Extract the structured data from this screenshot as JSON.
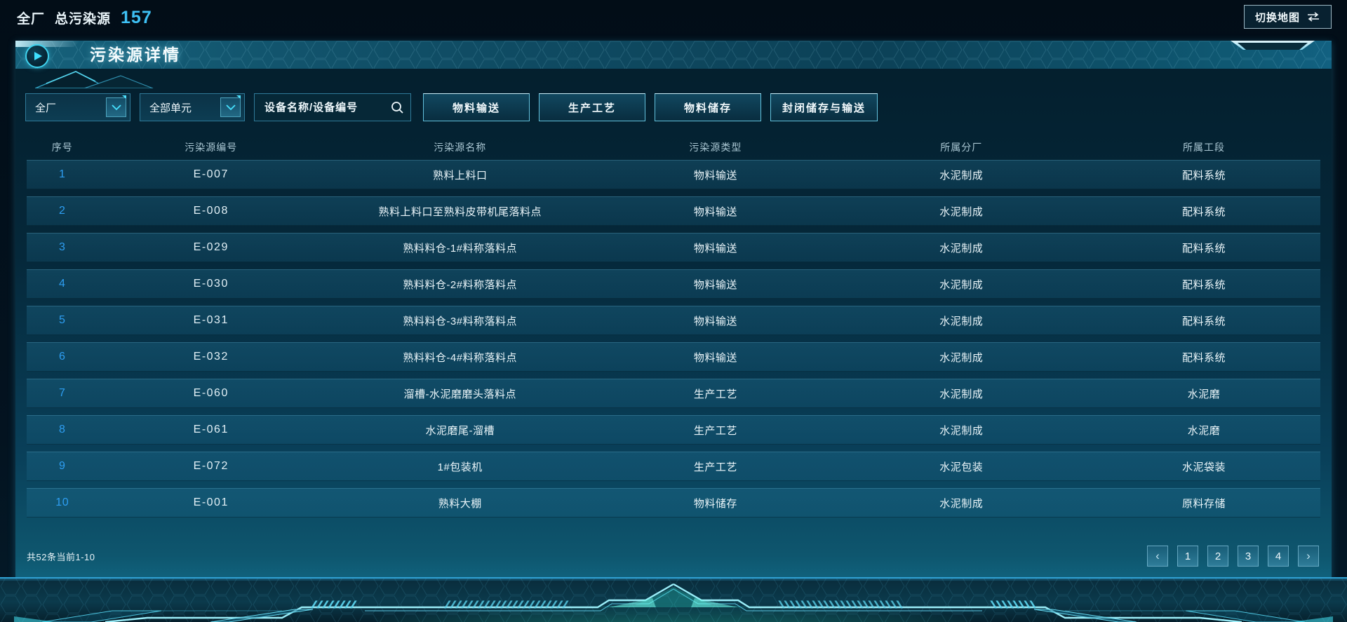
{
  "top_bar": {
    "scope_label": "全厂",
    "total_label": "总污染源",
    "total_value": "157",
    "switch_map_label": "切换地图"
  },
  "panel": {
    "title": "污染源详情",
    "filters": {
      "factory_select": "全厂",
      "unit_select": "全部单元",
      "search_placeholder": "设备名称/设备编号",
      "type_buttons": [
        "物料输送",
        "生产工艺",
        "物料储存",
        "封闭储存与输送"
      ]
    },
    "table": {
      "headers": [
        "序号",
        "污染源编号",
        "污染源名称",
        "污染源类型",
        "所属分厂",
        "所属工段"
      ],
      "rows": [
        [
          "1",
          "E-007",
          "熟料上料口",
          "物料输送",
          "水泥制成",
          "配料系统"
        ],
        [
          "2",
          "E-008",
          "熟料上料口至熟料皮带机尾落料点",
          "物料输送",
          "水泥制成",
          "配料系统"
        ],
        [
          "3",
          "E-029",
          "熟料料仓-1#料称落料点",
          "物料输送",
          "水泥制成",
          "配料系统"
        ],
        [
          "4",
          "E-030",
          "熟料料仓-2#料称落料点",
          "物料输送",
          "水泥制成",
          "配料系统"
        ],
        [
          "5",
          "E-031",
          "熟料料仓-3#料称落料点",
          "物料输送",
          "水泥制成",
          "配料系统"
        ],
        [
          "6",
          "E-032",
          "熟料料仓-4#料称落料点",
          "物料输送",
          "水泥制成",
          "配料系统"
        ],
        [
          "7",
          "E-060",
          "溜槽-水泥磨磨头落料点",
          "生产工艺",
          "水泥制成",
          "水泥磨"
        ],
        [
          "8",
          "E-061",
          "水泥磨尾-溜槽",
          "生产工艺",
          "水泥制成",
          "水泥磨"
        ],
        [
          "9",
          "E-072",
          "1#包装机",
          "生产工艺",
          "水泥包装",
          "水泥袋装"
        ],
        [
          "10",
          "E-001",
          "熟料大棚",
          "物料储存",
          "水泥制成",
          "原料存储"
        ]
      ]
    },
    "footer": {
      "summary": "共52条当前1-10",
      "pagination": {
        "prev": "‹",
        "pages": [
          "1",
          "2",
          "3",
          "4"
        ],
        "next": "›"
      }
    }
  },
  "icons": {
    "play": "▶",
    "swap_arrows": "⇆",
    "chevron_down": "∨",
    "search": "⌕"
  },
  "colors": {
    "accent": "#3fe0ff",
    "count": "#3ec1f5",
    "seq_link": "#2e9ef2",
    "panel_edge": "#2f9cc4"
  }
}
